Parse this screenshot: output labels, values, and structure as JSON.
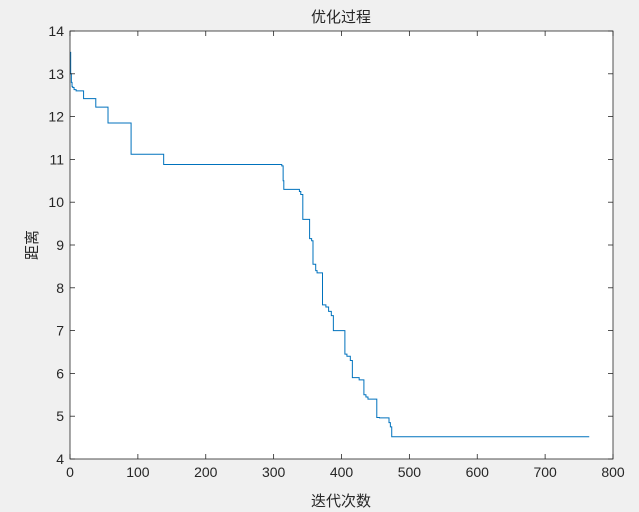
{
  "chart_data": {
    "type": "line",
    "title": "优化过程",
    "xlabel": "迭代次数",
    "ylabel": "距离",
    "xlim": [
      0,
      800
    ],
    "ylim": [
      4,
      14
    ],
    "xticks": [
      0,
      100,
      200,
      300,
      400,
      500,
      600,
      700,
      800
    ],
    "yticks": [
      4,
      5,
      6,
      7,
      8,
      9,
      10,
      11,
      12,
      13,
      14
    ],
    "grid": false,
    "legend": "none",
    "series": [
      {
        "color": "#0072bd",
        "step": true,
        "x": [
          0,
          1,
          2,
          3,
          4,
          6,
          9,
          20,
          38,
          56,
          90,
          138,
          312,
          314,
          315,
          338,
          340,
          343,
          353,
          356,
          358,
          362,
          364,
          372,
          377,
          381,
          385,
          388,
          393,
          405,
          408,
          413,
          416,
          426,
          433,
          436,
          439,
          450,
          452,
          456,
          463,
          470,
          472,
          474,
          765
        ],
        "y": [
          13.5,
          13.0,
          12.8,
          12.7,
          12.68,
          12.63,
          12.6,
          12.42,
          12.22,
          11.85,
          11.12,
          10.88,
          10.85,
          10.5,
          10.3,
          10.25,
          10.18,
          9.6,
          9.15,
          9.1,
          8.55,
          8.4,
          8.35,
          7.6,
          7.55,
          7.45,
          7.35,
          7.0,
          7.0,
          6.45,
          6.4,
          6.3,
          5.9,
          5.85,
          5.5,
          5.45,
          5.4,
          5.4,
          4.97,
          4.96,
          4.96,
          4.85,
          4.75,
          4.52,
          4.52
        ]
      }
    ]
  }
}
